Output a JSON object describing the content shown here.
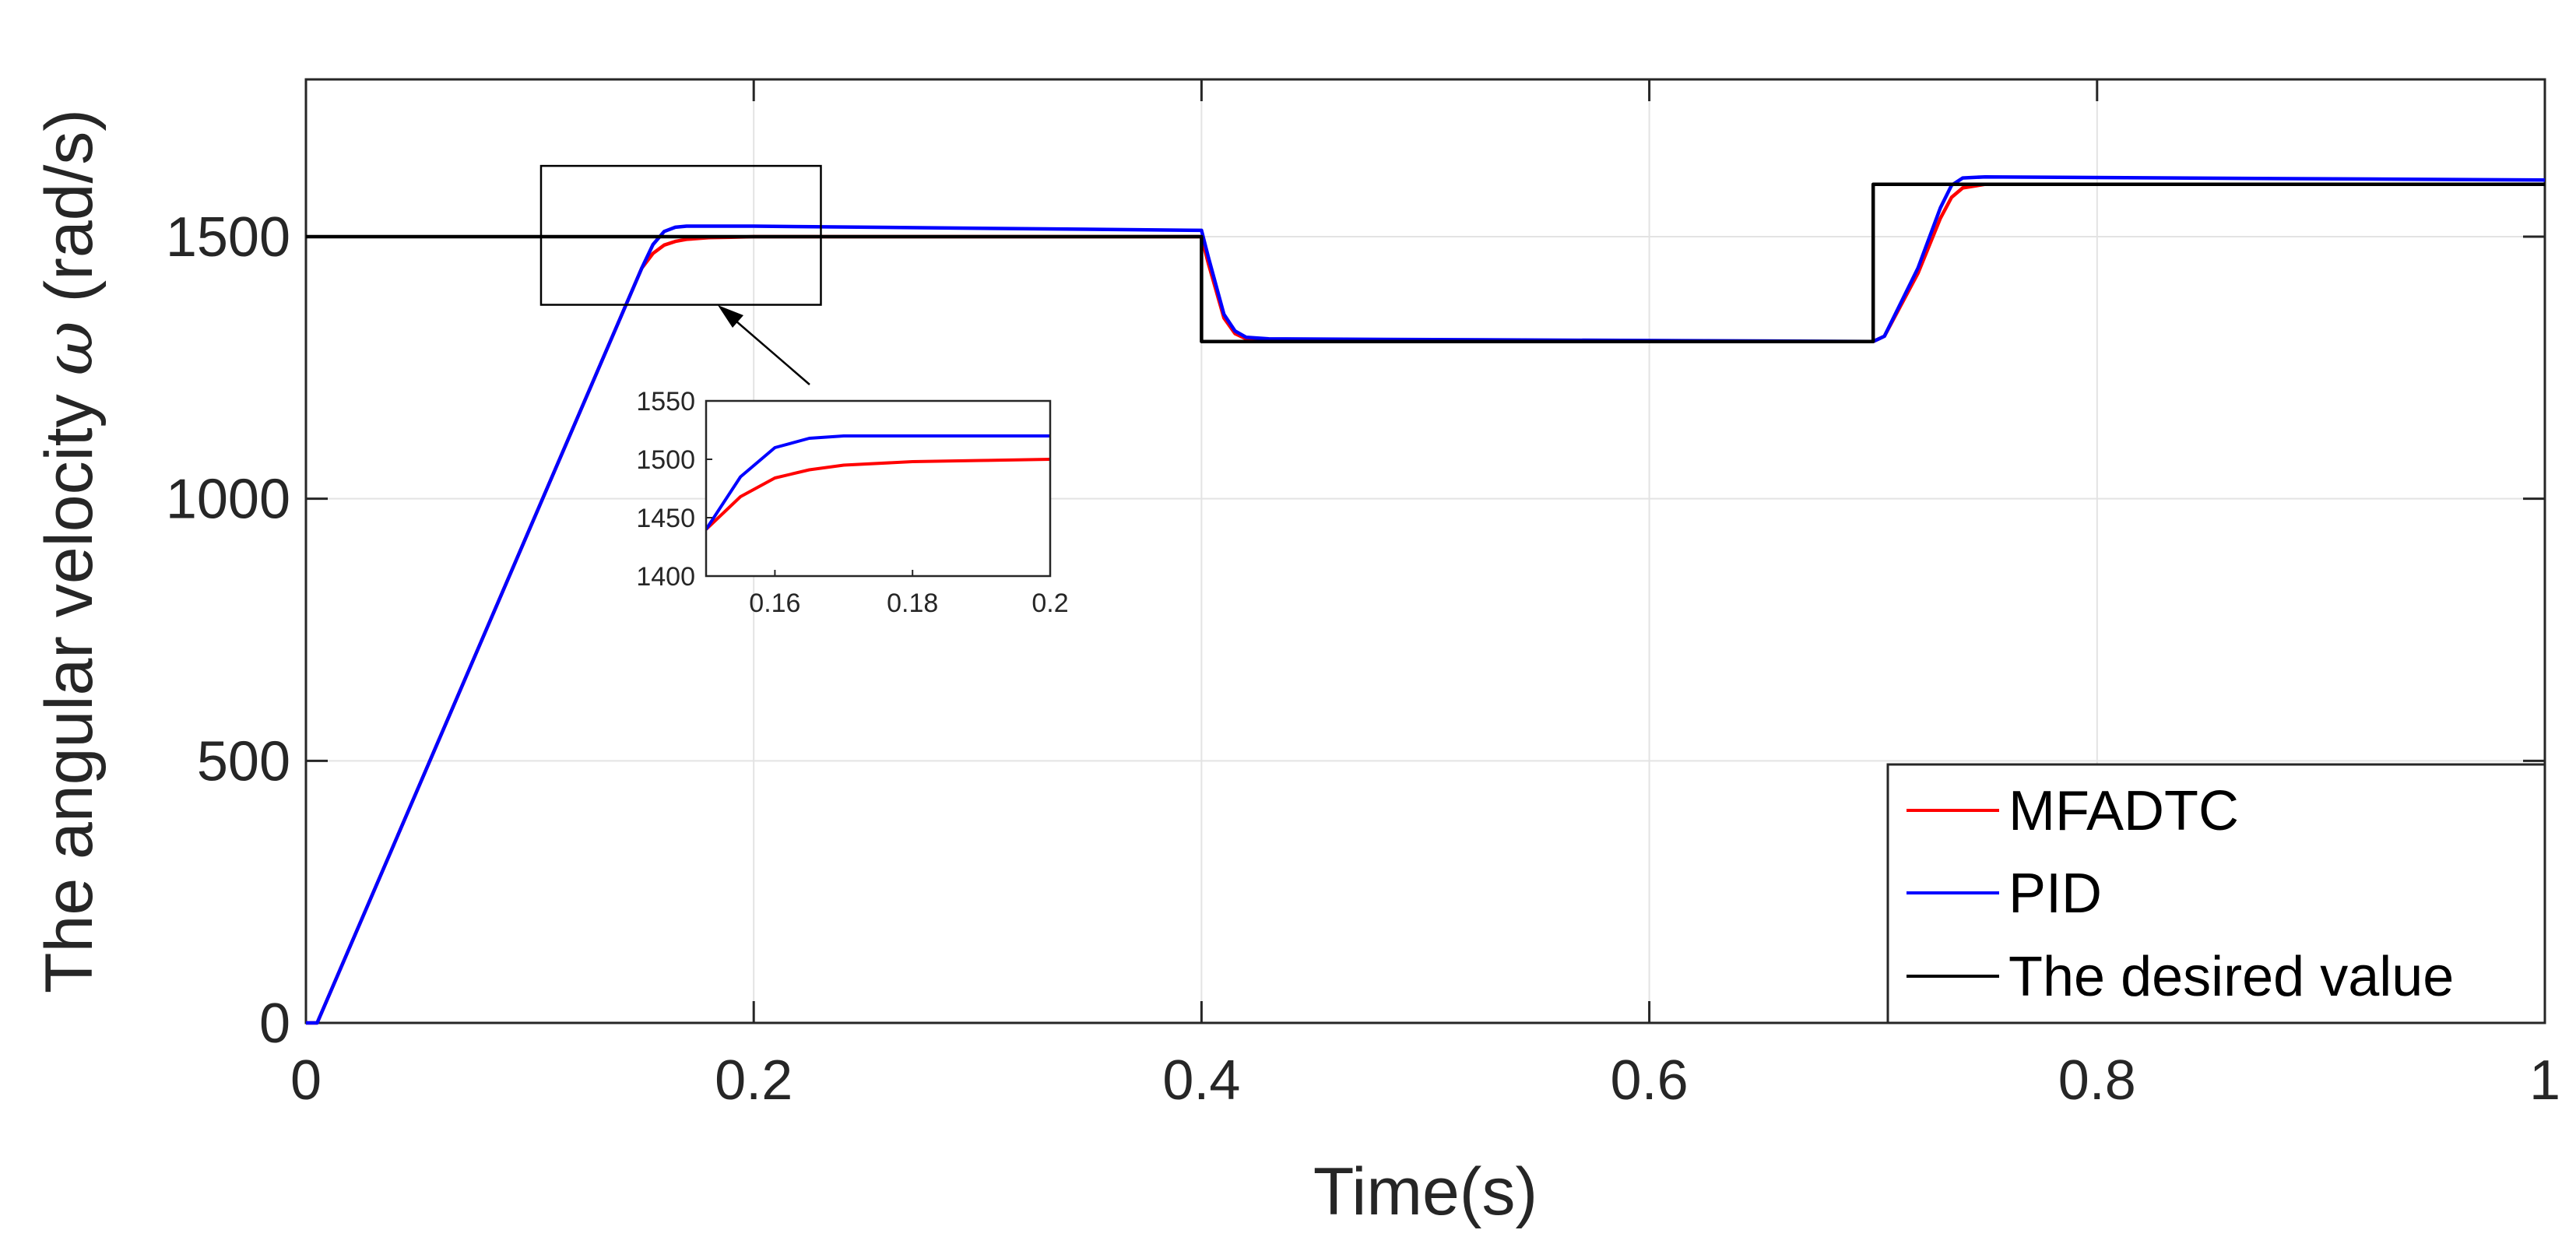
{
  "chart_data": {
    "type": "line",
    "title": "",
    "xlabel": "Time(s)",
    "ylabel": "The angular velocity ω (rad/s)",
    "ylabel_text": "The angular velocity",
    "ylabel_symbol": "ω",
    "ylabel_unit": "(rad/s)",
    "xlim": [
      0,
      1
    ],
    "ylim": [
      0,
      1800
    ],
    "xticks": [
      0,
      0.2,
      0.4,
      0.6,
      0.8,
      1
    ],
    "xtick_labels": [
      "0",
      "0.2",
      "0.4",
      "0.6",
      "0.8",
      "1"
    ],
    "yticks": [
      0,
      500,
      1000,
      1500
    ],
    "ytick_labels": [
      "0",
      "500",
      "1000",
      "1500"
    ],
    "grid": true,
    "legend_position": "bottom-right",
    "series": [
      {
        "name": "MFADTC",
        "color": "#ff0000",
        "x": [
          0,
          0.005,
          0.15,
          0.155,
          0.16,
          0.165,
          0.17,
          0.18,
          0.19,
          0.2,
          0.4,
          0.403,
          0.41,
          0.415,
          0.42,
          0.43,
          0.7,
          0.705,
          0.72,
          0.73,
          0.735,
          0.74,
          0.75,
          1.0
        ],
        "y": [
          0,
          0,
          1440,
          1468,
          1484,
          1491,
          1495,
          1498,
          1499,
          1500,
          1500,
          1450,
          1345,
          1315,
          1305,
          1300,
          1300,
          1310,
          1430,
          1535,
          1575,
          1593,
          1600,
          1600
        ]
      },
      {
        "name": "PID",
        "color": "#0000ff",
        "x": [
          0,
          0.005,
          0.15,
          0.155,
          0.16,
          0.165,
          0.17,
          0.18,
          0.19,
          0.2,
          0.4,
          0.403,
          0.41,
          0.415,
          0.42,
          0.43,
          0.7,
          0.705,
          0.72,
          0.73,
          0.735,
          0.74,
          0.75,
          1.0
        ],
        "y": [
          0,
          0,
          1440,
          1485,
          1510,
          1518,
          1520,
          1520,
          1520,
          1520,
          1512,
          1462,
          1352,
          1320,
          1308,
          1305,
          1300,
          1310,
          1440,
          1555,
          1598,
          1612,
          1614,
          1608
        ]
      },
      {
        "name": "The desired value",
        "color": "#000000",
        "x": [
          0,
          0,
          0.4,
          0.4,
          0.7,
          0.7,
          1.0
        ],
        "y": [
          1500,
          1500,
          1500,
          1300,
          1300,
          1600,
          1600
        ]
      }
    ],
    "inset": {
      "xlim": [
        0.15,
        0.2
      ],
      "ylim": [
        1400,
        1550
      ],
      "xticks": [
        0.16,
        0.18,
        0.2
      ],
      "xtick_labels": [
        "0.16",
        "0.18",
        "0.2"
      ],
      "yticks": [
        1400,
        1450,
        1500,
        1550
      ],
      "ytick_labels": [
        "1400",
        "1450",
        "1500",
        "1550"
      ],
      "zoom_region": {
        "xlim": [
          0.105,
          0.23
        ],
        "ylim": [
          1370,
          1635
        ]
      }
    }
  }
}
